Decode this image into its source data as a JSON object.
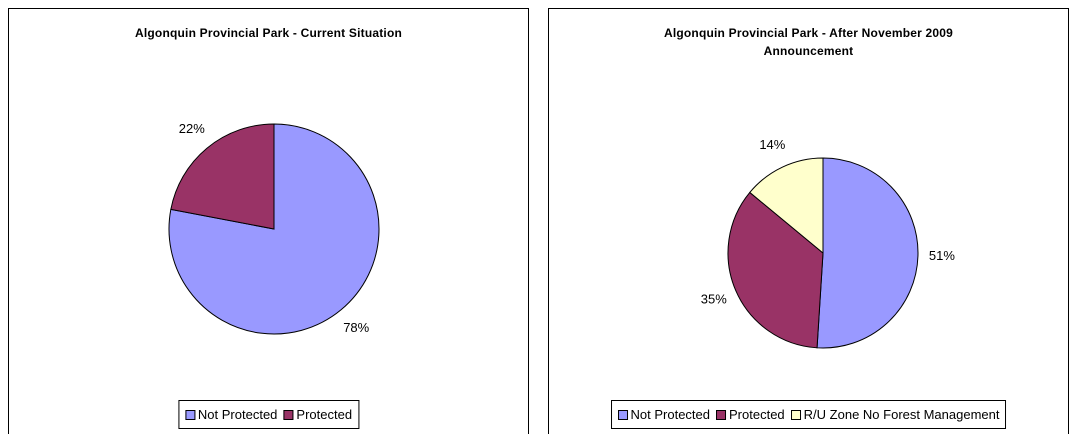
{
  "chart_data": [
    {
      "type": "pie",
      "title": "Algonquin Provincial Park - Current Situation",
      "categories": [
        "Not Protected",
        "Protected"
      ],
      "values": [
        78,
        22
      ],
      "value_labels": [
        "78%",
        "22%"
      ],
      "colors": [
        "#9999ff",
        "#993366"
      ],
      "legend": "bottom"
    },
    {
      "type": "pie",
      "title": "Algonquin Provincial Park - After November 2009 Announcement",
      "categories": [
        "Not Protected",
        "Protected",
        "R/U Zone No Forest Management"
      ],
      "values": [
        51,
        35,
        14
      ],
      "value_labels": [
        "51%",
        "35%",
        "14%"
      ],
      "colors": [
        "#9999ff",
        "#993366",
        "#ffffcc"
      ],
      "legend": "bottom"
    }
  ]
}
